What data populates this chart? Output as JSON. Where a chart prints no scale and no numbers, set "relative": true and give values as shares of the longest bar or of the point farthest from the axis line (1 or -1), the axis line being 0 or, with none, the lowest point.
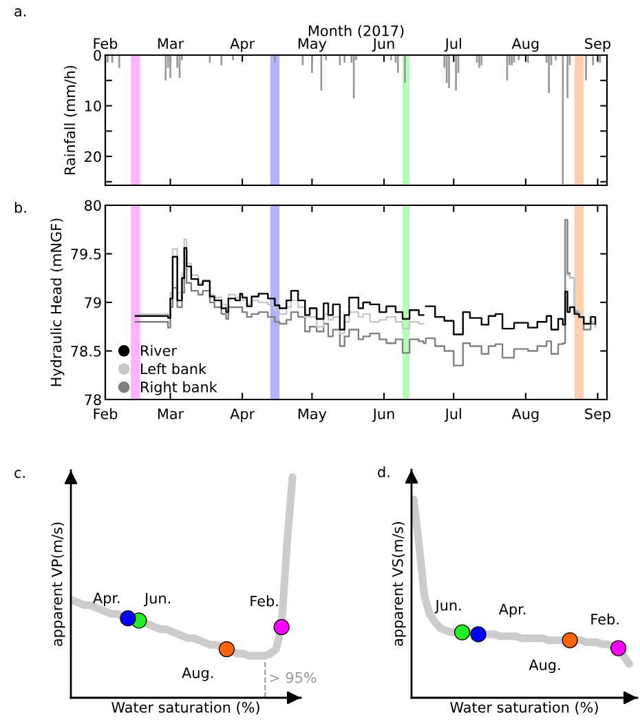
{
  "chart_data": [
    {
      "type": "bar",
      "ylabel": "Rainfall (mm/h)",
      "x2label": "Month (2017)",
      "annotations": [
        "a."
      ],
      "x": [
        "2017-02-02",
        "2017-02-04",
        "2017-02-07",
        "2017-02-27",
        "2017-02-28",
        "2017-03-01",
        "2017-03-04",
        "2017-03-05",
        "2017-03-06",
        "2017-03-18",
        "2017-03-23",
        "2017-03-28",
        "2017-04-15",
        "2017-04-27",
        "2017-05-01",
        "2017-05-05",
        "2017-05-07",
        "2017-05-13",
        "2017-05-15",
        "2017-05-18",
        "2017-05-19",
        "2017-05-20",
        "2017-06-04",
        "2017-06-06",
        "2017-06-07",
        "2017-06-10",
        "2017-06-27",
        "2017-06-28",
        "2017-06-29",
        "2017-07-02",
        "2017-07-03",
        "2017-07-11",
        "2017-07-12",
        "2017-07-13",
        "2017-07-24",
        "2017-07-25",
        "2017-07-26",
        "2017-07-27",
        "2017-07-29",
        "2017-08-02",
        "2017-08-10",
        "2017-08-11",
        "2017-08-12",
        "2017-08-14",
        "2017-08-17",
        "2017-08-19",
        "2017-08-20",
        "2017-08-27",
        "2017-08-30",
        "2017-09-02"
      ],
      "values": [
        1.5,
        1.5,
        2.5,
        5,
        2.5,
        4.5,
        2.5,
        4.5,
        1,
        1.5,
        2,
        1,
        1.5,
        2,
        3.5,
        7,
        1,
        2,
        1.5,
        1.5,
        8.5,
        1,
        1,
        1.5,
        3.5,
        5.5,
        2.5,
        5.5,
        6.5,
        7,
        3.5,
        1.5,
        2.5,
        2,
        5,
        2,
        2,
        1.5,
        1,
        1.5,
        1.5,
        7.5,
        2,
        1,
        25.5,
        8.5,
        2,
        5,
        2,
        1.5
      ],
      "color": "#999999",
      "xlim": [
        "2017-02-01",
        "2017-09-05"
      ],
      "xticks": [
        {
          "value": "2017-02-01",
          "label": "Feb"
        },
        {
          "value": "2017-03-01",
          "label": "Mar"
        },
        {
          "value": "2017-04-01",
          "label": "Apr"
        },
        {
          "value": "2017-05-01",
          "label": "May"
        },
        {
          "value": "2017-06-01",
          "label": "Jun"
        },
        {
          "value": "2017-07-01",
          "label": "Jul"
        },
        {
          "value": "2017-08-01",
          "label": "Aug"
        },
        {
          "value": "2017-09-01",
          "label": "Sep"
        }
      ],
      "ylim": [
        25.7,
        0
      ],
      "yticks": [
        0,
        {
          "value": 5,
          "label": null
        },
        10,
        {
          "value": 15,
          "label": null
        },
        20,
        {
          "value": 25,
          "label": null
        }
      ],
      "bands": [
        {
          "axis": "x",
          "from": "2017-02-12",
          "to": "2017-02-16",
          "color": "#ffb3ff"
        },
        {
          "axis": "x",
          "from": "2017-04-13",
          "to": "2017-04-17",
          "color": "#b3b3ff"
        },
        {
          "axis": "x",
          "from": "2017-06-09",
          "to": "2017-06-12",
          "color": "#b3ffb3"
        },
        {
          "axis": "x",
          "from": "2017-08-22",
          "to": "2017-08-26",
          "color": "#ffd0b0"
        }
      ]
    },
    {
      "type": "step",
      "ylabel": "Hydraulic Head (mNGF)",
      "annotations": [
        "b."
      ],
      "legend": "bottom left",
      "x": [
        "2017-02-14",
        "2017-02-28",
        "2017-03-01",
        "2017-03-02",
        "2017-03-04",
        "2017-03-06",
        "2017-03-07",
        "2017-03-08",
        "2017-03-10",
        "2017-03-13",
        "2017-03-15",
        "2017-03-18",
        "2017-03-20",
        "2017-03-23",
        "2017-03-25",
        "2017-03-26",
        "2017-03-29",
        "2017-03-31",
        "2017-04-01",
        "2017-04-03",
        "2017-04-05",
        "2017-04-08",
        "2017-04-12",
        "2017-04-15",
        "2017-04-17",
        "2017-04-20",
        "2017-04-22",
        "2017-04-25",
        "2017-04-28",
        "2017-04-30",
        "2017-05-03",
        "2017-05-06",
        "2017-05-08",
        "2017-05-10",
        "2017-05-13",
        "2017-05-15",
        "2017-05-17",
        "2017-05-21",
        "2017-05-23",
        "2017-05-26",
        "2017-05-30",
        "2017-06-02",
        "2017-06-06",
        "2017-06-09",
        "2017-06-12",
        "2017-06-16",
        "2017-06-18",
        "2017-06-19",
        "2017-06-23",
        "2017-06-27",
        "2017-07-01",
        "2017-07-05",
        "2017-07-08",
        "2017-07-13",
        "2017-07-16",
        "2017-07-19",
        "2017-07-22",
        "2017-07-27",
        "2017-08-02",
        "2017-08-06",
        "2017-08-10",
        "2017-08-12",
        "2017-08-15",
        "2017-08-17",
        "2017-08-18",
        "2017-08-19",
        "2017-08-20",
        "2017-08-22",
        "2017-08-24",
        "2017-08-26",
        "2017-08-29",
        "2017-08-31"
      ],
      "series": [
        {
          "name": "River",
          "color": "#000000",
          "values": [
            78.86,
            78.84,
            79.04,
            79.47,
            79.02,
            79.25,
            79.56,
            79.37,
            79.24,
            79.18,
            79.22,
            79.06,
            79.02,
            78.94,
            78.9,
            79.04,
            79.02,
            79.09,
            79.05,
            78.96,
            79.06,
            79.09,
            79.04,
            78.97,
            78.94,
            79.02,
            79.12,
            79.02,
            78.87,
            78.94,
            78.83,
            78.99,
            78.87,
            78.98,
            78.72,
            78.87,
            79.05,
            78.94,
            79.0,
            78.98,
            78.9,
            78.96,
            78.9,
            78.83,
            78.92,
            78.87,
            null,
            78.96,
            78.85,
            78.81,
            78.67,
            78.9,
            78.84,
            78.77,
            78.86,
            78.88,
            78.73,
            78.79,
            78.74,
            78.8,
            78.86,
            78.72,
            78.83,
            78.77,
            79.11,
            78.9,
            78.95,
            78.88,
            78.85,
            78.78,
            78.85,
            78.78
          ]
        },
        {
          "name": "Left bank",
          "color": "#c8c8c8",
          "values": [
            78.88,
            78.87,
            79.1,
            79.55,
            79.1,
            79.3,
            79.65,
            79.4,
            79.28,
            79.2,
            79.23,
            79.08,
            79.05,
            78.98,
            78.95,
            79.08,
            79.05,
            79.08,
            79.02,
            78.98,
            79.02,
            79.0,
            78.98,
            78.92,
            78.88,
            78.95,
            79.02,
            78.95,
            78.85,
            78.85,
            78.75,
            78.88,
            78.82,
            78.85,
            78.68,
            78.8,
            78.9,
            78.85,
            78.88,
            78.8,
            78.82,
            78.85,
            78.8,
            78.73,
            78.8,
            78.78,
            null,
            null,
            null,
            null,
            null,
            null,
            null,
            null,
            null,
            null,
            null,
            null,
            null,
            null,
            null,
            null,
            null,
            null,
            null,
            79.28,
            79.25,
            78.92,
            78.85,
            78.78,
            78.8,
            78.75
          ]
        },
        {
          "name": "Right bank",
          "color": "#808080",
          "values": [
            78.8,
            78.74,
            78.95,
            79.15,
            78.95,
            79.1,
            79.35,
            79.2,
            79.12,
            79.08,
            79.12,
            79.0,
            78.95,
            78.88,
            78.83,
            78.95,
            78.95,
            78.95,
            78.9,
            78.85,
            78.88,
            78.9,
            78.85,
            78.8,
            78.78,
            78.82,
            78.9,
            78.85,
            78.7,
            78.75,
            78.7,
            78.78,
            78.65,
            78.72,
            78.55,
            78.65,
            78.72,
            78.62,
            78.65,
            78.68,
            78.62,
            78.58,
            78.62,
            78.48,
            78.62,
            78.6,
            78.58,
            78.63,
            78.55,
            78.5,
            78.35,
            78.58,
            78.55,
            78.47,
            78.55,
            78.57,
            78.43,
            78.52,
            78.5,
            78.55,
            78.6,
            78.47,
            78.57,
            78.58,
            79.85,
            79.3,
            79.25,
            78.9,
            78.85,
            78.72,
            78.78,
            78.75
          ]
        }
      ],
      "xlim": [
        "2017-02-01",
        "2017-09-05"
      ],
      "xticks": [
        {
          "value": "2017-02-01",
          "label": "Feb"
        },
        {
          "value": "2017-03-01",
          "label": "Mar"
        },
        {
          "value": "2017-04-01",
          "label": "Apr"
        },
        {
          "value": "2017-05-01",
          "label": "May"
        },
        {
          "value": "2017-06-01",
          "label": "Jun"
        },
        {
          "value": "2017-07-01",
          "label": "Jul"
        },
        {
          "value": "2017-08-01",
          "label": "Aug"
        },
        {
          "value": "2017-09-01",
          "label": "Sep"
        }
      ],
      "ylim": [
        78,
        80
      ],
      "yticks": [
        78,
        78.5,
        79,
        79.5,
        80
      ],
      "bands": [
        {
          "axis": "x",
          "from": "2017-02-12",
          "to": "2017-02-16",
          "color": "#ffb3ff"
        },
        {
          "axis": "x",
          "from": "2017-04-13",
          "to": "2017-04-17",
          "color": "#b3b3ff"
        },
        {
          "axis": "x",
          "from": "2017-06-09",
          "to": "2017-06-12",
          "color": "#b3ffb3"
        },
        {
          "axis": "x",
          "from": "2017-08-22",
          "to": "2017-08-26",
          "color": "#ffd0b0"
        }
      ]
    },
    {
      "type": "line",
      "relative": true,
      "xlabel": "Water saturation (%)",
      "ylabel": "apparent VP(m/s)",
      "annotations": [
        "c.",
        "> 95%",
        "Apr.",
        "Jun.",
        "Aug.",
        "Feb."
      ],
      "categories": [
        null,
        null,
        null,
        null,
        null,
        null,
        null,
        null,
        null,
        null,
        null,
        null,
        null,
        null,
        null,
        null,
        null,
        null,
        null,
        null,
        null,
        null,
        null,
        null,
        null,
        null,
        null,
        null,
        null,
        null,
        null,
        null,
        null,
        null,
        null,
        null,
        null,
        null,
        null,
        null,
        null
      ],
      "series": [
        {
          "color": "#cccccc",
          "values": [
            0.44,
            0.43,
            0.42,
            0.42,
            0.41,
            0.4,
            0.39,
            0.38,
            0.38,
            0.37,
            0.36,
            0.35,
            0.35,
            0.34,
            0.33,
            0.32,
            0.31,
            0.31,
            0.3,
            0.29,
            0.28,
            0.27,
            0.27,
            0.26,
            0.25,
            0.24,
            0.24,
            0.23,
            0.22,
            0.21,
            0.2,
            0.2,
            0.19,
            0.19,
            0.19,
            0.19,
            0.2,
            0.22,
            0.32,
            0.7,
            1
          ],
          "colors": [
            null,
            null,
            null,
            null,
            null,
            null,
            null,
            null,
            null,
            null,
            "#0000ff",
            null,
            "#22ee22",
            null,
            null,
            null,
            null,
            null,
            null,
            null,
            null,
            null,
            null,
            null,
            null,
            null,
            null,
            null,
            "#ff6600",
            null,
            null,
            null,
            null,
            null,
            null,
            null,
            null,
            null,
            "#ff00ff",
            null,
            null
          ]
        }
      ]
    },
    {
      "type": "line",
      "relative": true,
      "xlabel": "Water saturation (%)",
      "ylabel": "apparent VS(m/s)",
      "annotations": [
        "d.",
        "Jun.",
        "Apr.",
        "Aug.",
        "Feb."
      ],
      "categories": [
        null,
        null,
        null,
        null,
        null,
        null,
        null,
        null,
        null,
        null,
        null,
        null,
        null,
        null,
        null,
        null,
        null,
        null,
        null,
        null,
        null,
        null,
        null,
        null,
        null,
        null,
        null,
        null,
        null,
        null,
        null,
        null,
        null,
        null,
        null,
        null,
        null,
        null,
        null,
        null,
        null
      ],
      "series": [
        {
          "color": "#cccccc",
          "values": [
            1.0,
            0.77,
            0.51,
            0.42,
            0.38,
            0.35,
            0.34,
            0.33,
            0.33,
            0.33,
            0.33,
            0.33,
            0.32,
            0.32,
            0.32,
            0.32,
            0.31,
            0.31,
            0.31,
            0.31,
            0.3,
            0.3,
            0.3,
            0.3,
            0.3,
            0.29,
            0.29,
            0.29,
            0.29,
            0.29,
            0.29,
            0.29,
            0.28,
            0.28,
            0.28,
            0.27,
            0.27,
            0.26,
            0.25,
            0.21,
            0.17
          ],
          "colors": [
            null,
            null,
            null,
            null,
            null,
            null,
            null,
            null,
            null,
            "#22ee22",
            null,
            null,
            "#0000ff",
            null,
            null,
            null,
            null,
            null,
            null,
            null,
            null,
            null,
            null,
            null,
            null,
            null,
            null,
            null,
            null,
            "#ff6600",
            null,
            null,
            null,
            null,
            null,
            null,
            null,
            null,
            "#ff00ff",
            null,
            null
          ]
        }
      ]
    }
  ]
}
